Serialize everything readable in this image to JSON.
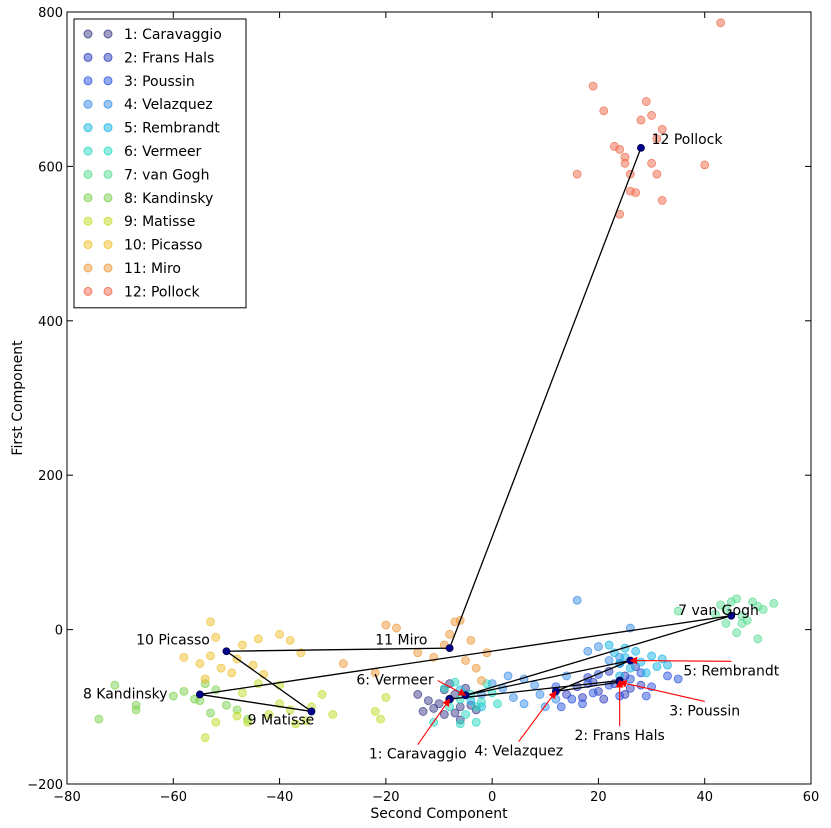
{
  "chart_data": {
    "type": "scatter",
    "xlabel": "Second Component",
    "ylabel": "First Component",
    "xlim": [
      -80,
      60
    ],
    "ylim": [
      -200,
      800
    ],
    "xticks": [
      -80,
      -60,
      -40,
      -20,
      0,
      20,
      40,
      60
    ],
    "yticks": [
      -200,
      0,
      200,
      400,
      600,
      800
    ],
    "xtick_labels": [
      "−80",
      "−60",
      "−40",
      "−20",
      "0",
      "20",
      "40",
      "60"
    ],
    "ytick_labels": [
      "−200",
      "0",
      "200",
      "400",
      "600",
      "800"
    ],
    "grid": false,
    "legend": {
      "placement": "top-left",
      "entries": [
        {
          "label": "1: Caravaggio",
          "color": "#3d3d8c"
        },
        {
          "label": "2: Frans Hals",
          "color": "#2f3fbf"
        },
        {
          "label": "3: Poussin",
          "color": "#2d55e0"
        },
        {
          "label": "4: Velazquez",
          "color": "#3b8fe8"
        },
        {
          "label": "5: Rembrandt",
          "color": "#18b6e6"
        },
        {
          "label": "6: Vermeer",
          "color": "#29d9c2"
        },
        {
          "label": "7: van Gogh",
          "color": "#59dd94"
        },
        {
          "label": "8: Kandinsky",
          "color": "#7ed250"
        },
        {
          "label": "9: Matisse",
          "color": "#c4dc2c"
        },
        {
          "label": "10: Picasso",
          "color": "#f0c02e"
        },
        {
          "label": "11: Miro",
          "color": "#ef9a3c"
        },
        {
          "label": "12: Pollock",
          "color": "#ef6a4a"
        }
      ]
    },
    "series": [
      {
        "name": "1: Caravaggio",
        "color": "#3d3d8c",
        "centroid": [
          -8,
          -90
        ],
        "points": [
          [
            -14,
            -84
          ],
          [
            -10,
            -96
          ],
          [
            -9,
            -110
          ],
          [
            -8,
            -90
          ],
          [
            -6,
            -100
          ],
          [
            -5,
            -76
          ],
          [
            -11,
            -102
          ],
          [
            -7,
            -84
          ],
          [
            -13,
            -106
          ],
          [
            -12,
            -92
          ],
          [
            -6,
            -117
          ],
          [
            -4,
            -98
          ],
          [
            -8,
            -70
          ],
          [
            -9,
            -78
          ],
          [
            -3,
            -104
          ],
          [
            -7,
            -108
          ]
        ]
      },
      {
        "name": "2: Frans Hals",
        "color": "#2f3fbf",
        "centroid": [
          24,
          -66
        ],
        "points": [
          [
            14,
            -84
          ],
          [
            16,
            -74
          ],
          [
            18,
            -62
          ],
          [
            20,
            -80
          ],
          [
            22,
            -54
          ],
          [
            23,
            -70
          ],
          [
            25,
            -60
          ],
          [
            26,
            -76
          ],
          [
            27,
            -48
          ],
          [
            21,
            -90
          ],
          [
            19,
            -68
          ],
          [
            24,
            -44
          ],
          [
            28,
            -72
          ],
          [
            17,
            -88
          ],
          [
            25,
            -84
          ]
        ]
      },
      {
        "name": "3: Poussin",
        "color": "#2d55e0",
        "centroid": [
          24,
          -68
        ],
        "points": [
          [
            12,
            -74
          ],
          [
            15,
            -90
          ],
          [
            17,
            -96
          ],
          [
            19,
            -82
          ],
          [
            20,
            -58
          ],
          [
            22,
            -72
          ],
          [
            24,
            -86
          ],
          [
            26,
            -64
          ],
          [
            28,
            -56
          ],
          [
            30,
            -74
          ],
          [
            33,
            -60
          ],
          [
            35,
            -64
          ],
          [
            29,
            -86
          ],
          [
            18,
            -70
          ],
          [
            13,
            -100
          ]
        ]
      },
      {
        "name": "4: Velazquez",
        "color": "#3b8fe8",
        "centroid": [
          12,
          -80
        ],
        "points": [
          [
            -2,
            -84
          ],
          [
            0,
            -70
          ],
          [
            2,
            -76
          ],
          [
            4,
            -88
          ],
          [
            6,
            -64
          ],
          [
            8,
            -72
          ],
          [
            10,
            -100
          ],
          [
            12,
            -90
          ],
          [
            14,
            -60
          ],
          [
            16,
            38
          ],
          [
            18,
            -28
          ],
          [
            20,
            -22
          ],
          [
            22,
            -40
          ],
          [
            24,
            -36
          ],
          [
            26,
            2
          ],
          [
            6,
            -96
          ],
          [
            3,
            -60
          ],
          [
            9,
            -84
          ]
        ]
      },
      {
        "name": "5: Rembrandt",
        "color": "#18b6e6",
        "centroid": [
          26,
          -40
        ],
        "points": [
          [
            -6,
            -78
          ],
          [
            -5,
            -84
          ],
          [
            -4,
            -92
          ],
          [
            -2,
            -100
          ],
          [
            22,
            -20
          ],
          [
            23,
            -30
          ],
          [
            24,
            -44
          ],
          [
            25,
            -36
          ],
          [
            26,
            -50
          ],
          [
            27,
            -28
          ],
          [
            28,
            -42
          ],
          [
            29,
            -56
          ],
          [
            30,
            -34
          ],
          [
            31,
            -48
          ],
          [
            32,
            -38
          ],
          [
            33,
            -46
          ],
          [
            24,
            -60
          ],
          [
            25,
            -24
          ]
        ]
      },
      {
        "name": "6: Vermeer",
        "color": "#29d9c2",
        "centroid": [
          -5,
          -85
        ],
        "points": [
          [
            -9,
            -76
          ],
          [
            -8,
            -100
          ],
          [
            -7,
            -68
          ],
          [
            -6,
            -90
          ],
          [
            -4,
            -84
          ],
          [
            -3,
            -100
          ],
          [
            -2,
            -94
          ],
          [
            -5,
            -110
          ],
          [
            0,
            -82
          ],
          [
            -6,
            -122
          ],
          [
            -3,
            -120
          ],
          [
            -11,
            -120
          ],
          [
            -1,
            -70
          ],
          [
            1,
            -96
          ]
        ]
      },
      {
        "name": "7: van Gogh",
        "color": "#59dd94",
        "centroid": [
          45,
          18
        ],
        "points": [
          [
            35,
            24
          ],
          [
            42,
            20
          ],
          [
            43,
            32
          ],
          [
            44,
            26
          ],
          [
            45,
            36
          ],
          [
            46,
            40
          ],
          [
            47,
            18
          ],
          [
            48,
            12
          ],
          [
            49,
            36
          ],
          [
            50,
            30
          ],
          [
            51,
            26
          ],
          [
            53,
            34
          ],
          [
            47,
            8
          ],
          [
            46,
            -4
          ],
          [
            50,
            -12
          ],
          [
            44,
            8
          ]
        ]
      },
      {
        "name": "8: Kandinsky",
        "color": "#7ed250",
        "centroid": [
          -55,
          -84
        ],
        "points": [
          [
            -74,
            -116
          ],
          [
            -71,
            -72
          ],
          [
            -67,
            -98
          ],
          [
            -67,
            -104
          ],
          [
            -60,
            -86
          ],
          [
            -58,
            -80
          ],
          [
            -56,
            -90
          ],
          [
            -55,
            -92
          ],
          [
            -52,
            -78
          ],
          [
            -53,
            -108
          ],
          [
            -50,
            -98
          ],
          [
            -48,
            -104
          ],
          [
            -46,
            -116
          ],
          [
            -54,
            -70
          ]
        ]
      },
      {
        "name": "9: Matisse",
        "color": "#c4dc2c",
        "centroid": [
          -34,
          -106
        ],
        "points": [
          [
            -52,
            -120
          ],
          [
            -48,
            -112
          ],
          [
            -46,
            -120
          ],
          [
            -42,
            -110
          ],
          [
            -40,
            -96
          ],
          [
            -38,
            -104
          ],
          [
            -37,
            -122
          ],
          [
            -35,
            -118
          ],
          [
            -34,
            -100
          ],
          [
            -32,
            -84
          ],
          [
            -30,
            -110
          ],
          [
            -22,
            -106
          ],
          [
            -21,
            -116
          ],
          [
            -20,
            -88
          ],
          [
            -44,
            -70
          ],
          [
            -40,
            -72
          ],
          [
            -47,
            -82
          ],
          [
            -54,
            -140
          ]
        ]
      },
      {
        "name": "10: Picasso",
        "color": "#f0c02e",
        "centroid": [
          -50,
          -28
        ],
        "points": [
          [
            -58,
            -36
          ],
          [
            -55,
            -44
          ],
          [
            -54,
            -64
          ],
          [
            -53,
            -34
          ],
          [
            -52,
            -10
          ],
          [
            -51,
            -50
          ],
          [
            -49,
            -56
          ],
          [
            -48,
            -38
          ],
          [
            -47,
            -20
          ],
          [
            -45,
            -46
          ],
          [
            -44,
            -12
          ],
          [
            -43,
            -58
          ],
          [
            -40,
            -6
          ],
          [
            -38,
            -14
          ],
          [
            -36,
            -30
          ],
          [
            -53,
            10
          ]
        ]
      },
      {
        "name": "11: Miro",
        "color": "#ef9a3c",
        "centroid": [
          -8,
          -24
        ],
        "points": [
          [
            -28,
            -44
          ],
          [
            -22,
            -56
          ],
          [
            -20,
            6
          ],
          [
            -18,
            2
          ],
          [
            -14,
            -30
          ],
          [
            -11,
            -36
          ],
          [
            -9,
            -20
          ],
          [
            -8,
            -6
          ],
          [
            -7,
            10
          ],
          [
            -6,
            12
          ],
          [
            -5,
            -40
          ],
          [
            -3,
            -50
          ],
          [
            -2,
            -66
          ],
          [
            -1,
            -30
          ],
          [
            -4,
            -14
          ]
        ]
      },
      {
        "name": "12: Pollock",
        "color": "#ef6a4a",
        "centroid": [
          28,
          624
        ],
        "points": [
          [
            16,
            590
          ],
          [
            19,
            704
          ],
          [
            21,
            672
          ],
          [
            23,
            626
          ],
          [
            24,
            538
          ],
          [
            24,
            622
          ],
          [
            25,
            604
          ],
          [
            25,
            612
          ],
          [
            26,
            590
          ],
          [
            26,
            568
          ],
          [
            27,
            566
          ],
          [
            28,
            660
          ],
          [
            29,
            684
          ],
          [
            30,
            604
          ],
          [
            30,
            666
          ],
          [
            31,
            636
          ],
          [
            31,
            590
          ],
          [
            32,
            556
          ],
          [
            32,
            648
          ],
          [
            40,
            602
          ],
          [
            43,
            786
          ]
        ]
      }
    ],
    "centroid_path": [
      [
        -8,
        -90
      ],
      [
        24,
        -66
      ],
      [
        24,
        -68
      ],
      [
        12,
        -80
      ],
      [
        26,
        -40
      ],
      [
        -5,
        -85
      ],
      [
        45,
        18
      ],
      [
        -55,
        -84
      ],
      [
        -34,
        -106
      ],
      [
        -50,
        -28
      ],
      [
        -8,
        -24
      ],
      [
        28,
        624
      ]
    ],
    "annotations": [
      {
        "text": "12 Pollock",
        "point": [
          28,
          624
        ],
        "label_at": [
          30,
          634
        ],
        "anchor": "start",
        "arrow": false
      },
      {
        "text": "7 van Gogh",
        "point": [
          45,
          18
        ],
        "label_at": [
          35,
          24
        ],
        "anchor": "start",
        "arrow": false
      },
      {
        "text": "10 Picasso",
        "point": [
          -50,
          -28
        ],
        "label_at": [
          -67,
          -14
        ],
        "anchor": "start",
        "arrow": false
      },
      {
        "text": "11 Miro",
        "point": [
          -8,
          -24
        ],
        "label_at": [
          -22,
          -14
        ],
        "anchor": "start",
        "arrow": false
      },
      {
        "text": "8 Kandinsky",
        "point": [
          -55,
          -84
        ],
        "label_at": [
          -77,
          -84
        ],
        "anchor": "start",
        "arrow": false
      },
      {
        "text": "9 Matisse",
        "point": [
          -34,
          -106
        ],
        "label_at": [
          -46,
          -118
        ],
        "anchor": "start",
        "arrow": false
      },
      {
        "text": "6: Vermeer",
        "point": [
          -5,
          -85
        ],
        "label_at": [
          -11,
          -66
        ],
        "anchor": "end",
        "arrow": true
      },
      {
        "text": "1: Caravaggio",
        "point": [
          -8,
          -90
        ],
        "label_at": [
          -14,
          -162
        ],
        "anchor": "middle",
        "arrow": true
      },
      {
        "text": "4: Velazquez",
        "point": [
          12,
          -80
        ],
        "label_at": [
          5,
          -158
        ],
        "anchor": "middle",
        "arrow": true
      },
      {
        "text": "2: Frans Hals",
        "point": [
          24,
          -66
        ],
        "label_at": [
          24,
          -138
        ],
        "anchor": "middle",
        "arrow": true
      },
      {
        "text": "3: Poussin",
        "point": [
          24,
          -68
        ],
        "label_at": [
          40,
          -106
        ],
        "anchor": "middle",
        "arrow": true
      },
      {
        "text": "5: Rembrandt",
        "point": [
          26,
          -40
        ],
        "label_at": [
          45,
          -54
        ],
        "anchor": "middle",
        "arrow": true
      }
    ]
  }
}
